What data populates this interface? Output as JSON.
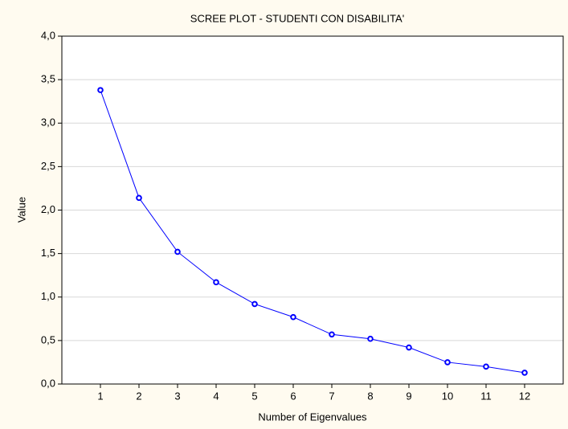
{
  "chart_data": {
    "type": "line",
    "title": "SCREE PLOT - STUDENTI CON DISABILITA'",
    "x_label": "Number of Eigenvalues",
    "y_label": "Value",
    "x": [
      1,
      2,
      3,
      4,
      5,
      6,
      7,
      8,
      9,
      10,
      11,
      12
    ],
    "series": [
      {
        "name": "Value",
        "color": "#0000ff",
        "values": [
          3.38,
          2.14,
          1.52,
          1.17,
          0.92,
          0.77,
          0.57,
          0.52,
          0.42,
          0.25,
          0.2,
          0.13
        ]
      }
    ],
    "xlim": [
      0,
      13
    ],
    "xticks": [
      1,
      2,
      3,
      4,
      5,
      6,
      7,
      8,
      9,
      10,
      11,
      12
    ],
    "ylim": [
      0,
      4
    ],
    "yticks": [
      {
        "value": 0,
        "label": "0,0"
      },
      {
        "value": 0.5,
        "label": "0,5"
      },
      {
        "value": 1,
        "label": "1,0"
      },
      {
        "value": 1.5,
        "label": "1,5"
      },
      {
        "value": 2,
        "label": "2,0"
      },
      {
        "value": 2.5,
        "label": "2,5"
      },
      {
        "value": 3,
        "label": "3,0"
      },
      {
        "value": 3.5,
        "label": "3,5"
      },
      {
        "value": 4,
        "label": "4,0"
      }
    ],
    "grid": true
  }
}
